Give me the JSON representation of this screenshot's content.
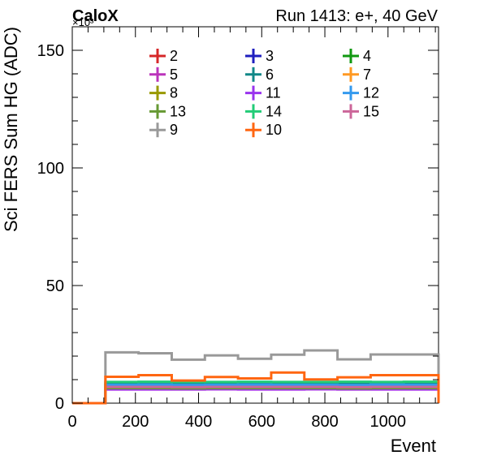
{
  "header": {
    "logo": "CaloX",
    "run_label": "Run 1413: e+, 40 GeV",
    "exponent_label": "×10³"
  },
  "chart_data": {
    "type": "step-histogram",
    "xlabel": "Event",
    "ylabel": "Sci FERS Sum HG (ADC)",
    "y_units_multiplier": 1000,
    "xlim": [
      0,
      1160
    ],
    "ylim": [
      0,
      160
    ],
    "x_ticks": [
      0,
      200,
      400,
      600,
      800,
      1000
    ],
    "y_ticks": [
      0,
      50,
      100,
      150
    ],
    "bin_edges": [
      0,
      105,
      210,
      315,
      420,
      525,
      630,
      735,
      840,
      945,
      1050,
      1160
    ],
    "legend_placement": "top-center, 3 columns",
    "series": [
      {
        "name": "2",
        "color": "#d62728",
        "values": [
          0,
          7.0,
          7.0,
          6.9,
          7.0,
          7.0,
          7.1,
          7.0,
          6.9,
          7.0,
          7.0,
          0
        ]
      },
      {
        "name": "3",
        "color": "#1f1fbf",
        "values": [
          0,
          6.0,
          6.0,
          6.0,
          6.0,
          6.1,
          6.0,
          6.0,
          6.0,
          6.0,
          6.0,
          0
        ]
      },
      {
        "name": "4",
        "color": "#119911",
        "values": [
          0,
          8.2,
          8.3,
          8.1,
          8.2,
          8.3,
          8.2,
          8.2,
          8.1,
          8.3,
          8.2,
          0
        ]
      },
      {
        "name": "5",
        "color": "#bb33bb",
        "values": [
          0,
          5.8,
          5.8,
          5.8,
          5.9,
          5.8,
          5.8,
          5.9,
          5.8,
          5.8,
          5.8,
          0
        ]
      },
      {
        "name": "6",
        "color": "#118888",
        "values": [
          0,
          8.6,
          8.7,
          8.6,
          8.6,
          8.7,
          8.6,
          8.6,
          8.7,
          8.6,
          8.7,
          0
        ]
      },
      {
        "name": "7",
        "color": "#ff9922",
        "values": [
          0,
          7.3,
          7.3,
          7.2,
          7.3,
          7.4,
          7.3,
          7.3,
          7.2,
          7.3,
          7.3,
          0
        ]
      },
      {
        "name": "8",
        "color": "#999900",
        "values": [
          0,
          6.7,
          6.7,
          6.6,
          6.7,
          6.7,
          6.7,
          6.7,
          6.6,
          6.7,
          6.7,
          0
        ]
      },
      {
        "name": "11",
        "color": "#9933ee",
        "values": [
          0,
          5.9,
          5.9,
          5.9,
          6.0,
          5.9,
          5.9,
          6.0,
          5.9,
          5.9,
          5.9,
          0
        ]
      },
      {
        "name": "12",
        "color": "#3399ee",
        "values": [
          0,
          7.8,
          7.9,
          7.7,
          7.8,
          7.9,
          7.8,
          7.8,
          7.7,
          7.9,
          7.8,
          0
        ]
      },
      {
        "name": "13",
        "color": "#669933",
        "values": [
          0,
          6.4,
          6.4,
          6.3,
          6.4,
          6.4,
          6.4,
          6.4,
          6.3,
          6.4,
          6.4,
          0
        ]
      },
      {
        "name": "14",
        "color": "#22cc77",
        "values": [
          0,
          9.0,
          9.1,
          9.0,
          9.0,
          9.1,
          9.0,
          9.0,
          9.1,
          9.0,
          9.1,
          0
        ]
      },
      {
        "name": "15",
        "color": "#cc6699",
        "values": [
          0,
          6.9,
          6.9,
          6.8,
          6.9,
          6.9,
          6.9,
          6.9,
          6.8,
          6.9,
          6.9,
          0
        ]
      },
      {
        "name": "9",
        "color": "#999999",
        "values": [
          0,
          21.6,
          21.2,
          18.5,
          20.3,
          18.9,
          20.6,
          22.4,
          18.6,
          20.7,
          20.7,
          0
        ]
      },
      {
        "name": "10",
        "color": "#ff6611",
        "values": [
          0,
          11.2,
          11.9,
          9.6,
          11.1,
          10.5,
          13.0,
          10.1,
          11.0,
          11.9,
          11.9,
          0
        ]
      }
    ]
  }
}
